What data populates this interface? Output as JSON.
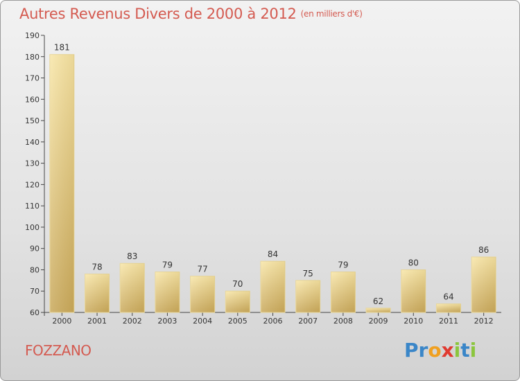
{
  "title": "Autres Revenus Divers de 2000 à 2012",
  "title_unit": "(en milliers d'€)",
  "place": "FOZZANO",
  "brand": {
    "letters": [
      "P",
      "r",
      "o",
      "x",
      "i",
      "t",
      "i"
    ],
    "colors": [
      "#3a86c8",
      "#3a86c8",
      "#f0a020",
      "#e03a30",
      "#8cc63e",
      "#3a86c8",
      "#8cc63e"
    ]
  },
  "colors": {
    "title": "#d45a50",
    "bar_light": "#f7e3a3",
    "bar_dark": "#c8a858"
  },
  "chart_data": {
    "type": "bar",
    "categories": [
      "2000",
      "2001",
      "2002",
      "2003",
      "2004",
      "2005",
      "2006",
      "2007",
      "2008",
      "2009",
      "2010",
      "2011",
      "2012"
    ],
    "values": [
      181,
      78,
      83,
      79,
      77,
      70,
      84,
      75,
      79,
      62,
      80,
      64,
      86
    ],
    "ylim": [
      60,
      190
    ],
    "yticks": [
      60,
      70,
      80,
      90,
      100,
      110,
      120,
      130,
      140,
      150,
      160,
      170,
      180,
      190
    ],
    "title": "Autres Revenus Divers de 2000 à 2012",
    "xlabel": "",
    "ylabel": "",
    "grid": false,
    "data_labels": true
  }
}
